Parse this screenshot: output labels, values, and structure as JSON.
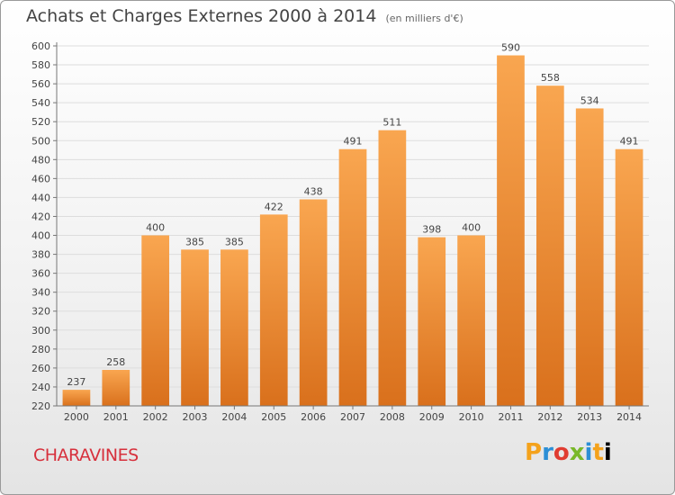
{
  "chart_title": "Achats et Charges Externes 2000 à 2014",
  "chart_unit": "(en milliers d'€)",
  "commune": "CHARAVINES",
  "logo": {
    "name": "Proxiti"
  },
  "colors": {
    "bar_top": "#f9a650",
    "bar_bottom": "#d9701c",
    "grid": "#dddddd"
  },
  "chart_data": {
    "type": "bar",
    "title": "Achats et Charges Externes 2000 à 2014",
    "subtitle": "(en milliers d'€)",
    "xlabel": "",
    "ylabel": "",
    "categories": [
      "2000",
      "2001",
      "2002",
      "2003",
      "2004",
      "2005",
      "2006",
      "2007",
      "2008",
      "2009",
      "2010",
      "2011",
      "2012",
      "2013",
      "2014"
    ],
    "values": [
      237,
      258,
      400,
      385,
      385,
      422,
      438,
      491,
      511,
      398,
      400,
      590,
      558,
      534,
      491
    ],
    "ylim": [
      220,
      600
    ],
    "yticks": [
      220,
      240,
      260,
      280,
      300,
      320,
      340,
      360,
      380,
      400,
      420,
      440,
      460,
      480,
      500,
      520,
      540,
      560,
      580,
      600
    ],
    "grid": true,
    "data_labels": true
  }
}
